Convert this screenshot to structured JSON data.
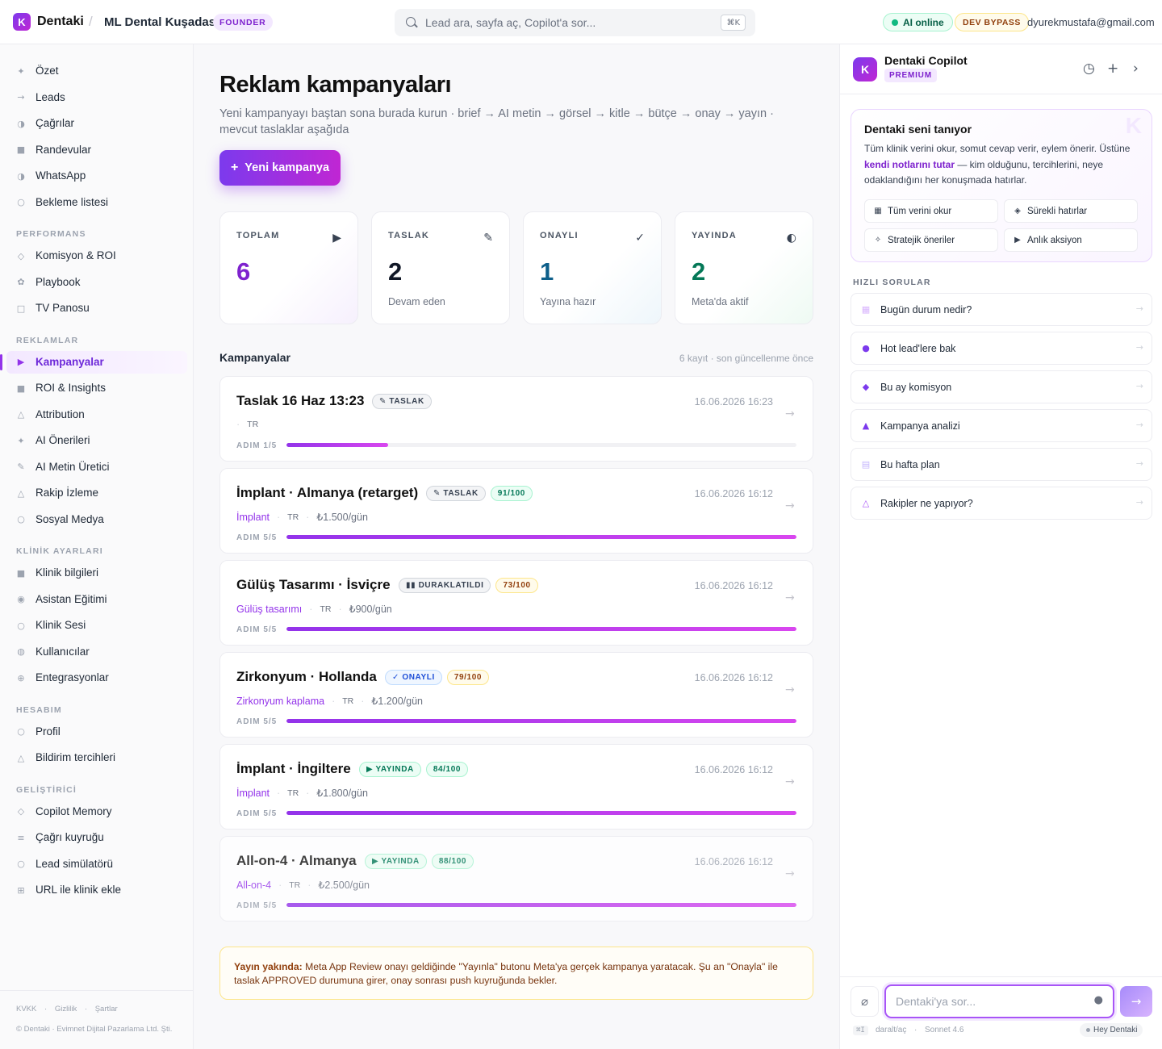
{
  "topbar": {
    "logo_letter": "K",
    "brand": "Dentaki",
    "separator": "/",
    "clinic": "ML Dental Kuşadası",
    "role_badge": "FOUNDER",
    "search_placeholder": "Lead ara, sayfa aç, Copilot'a sor...",
    "search_shortcut": "⌘K",
    "ai_status": "AI online",
    "dev_badge": "DEV BYPASS",
    "user_email": "dyurekmustafa@gmail.com"
  },
  "sidebar": {
    "main_items": [
      {
        "label": "Özet",
        "icon": "sparkle-icon"
      },
      {
        "label": "Leads",
        "icon": "arrow-right-icon"
      },
      {
        "label": "Çağrılar",
        "icon": "half-circle-icon"
      },
      {
        "label": "Randevular",
        "icon": "square-icon"
      },
      {
        "label": "WhatsApp",
        "icon": "half-circle-icon"
      },
      {
        "label": "Bekleme listesi",
        "icon": "circle-icon"
      }
    ],
    "sections": [
      {
        "title": "PERFORMANS",
        "items": [
          {
            "label": "Komisyon & ROI",
            "icon": "diamond-icon"
          },
          {
            "label": "Playbook",
            "icon": "flower-icon"
          },
          {
            "label": "TV Panosu",
            "icon": "square-outline-icon"
          }
        ]
      },
      {
        "title": "REKLAMLAR",
        "items": [
          {
            "label": "Kampanyalar",
            "icon": "play-icon",
            "active": true
          },
          {
            "label": "ROI & Insights",
            "icon": "square-icon"
          },
          {
            "label": "Attribution",
            "icon": "triangle-icon"
          },
          {
            "label": "AI Önerileri",
            "icon": "sparkle-icon"
          },
          {
            "label": "AI Metin Üretici",
            "icon": "pencil-icon"
          },
          {
            "label": "Rakip İzleme",
            "icon": "triangle-icon"
          },
          {
            "label": "Sosyal Medya",
            "icon": "circle-icon"
          }
        ]
      },
      {
        "title": "KLİNİK AYARLARI",
        "items": [
          {
            "label": "Klinik bilgileri",
            "icon": "square-icon"
          },
          {
            "label": "Asistan Eğitimi",
            "icon": "target-icon"
          },
          {
            "label": "Klinik Sesi",
            "icon": "circle-icon"
          },
          {
            "label": "Kullanıcılar",
            "icon": "user-icon"
          },
          {
            "label": "Entegrasyonlar",
            "icon": "plus-circle-icon"
          }
        ]
      },
      {
        "title": "HESABIM",
        "items": [
          {
            "label": "Profil",
            "icon": "circle-icon"
          },
          {
            "label": "Bildirim tercihleri",
            "icon": "triangle-icon"
          }
        ]
      },
      {
        "title": "GELİŞTİRİCİ",
        "items": [
          {
            "label": "Copilot Memory",
            "icon": "diamond-icon"
          },
          {
            "label": "Çağrı kuyruğu",
            "icon": "list-icon"
          },
          {
            "label": "Lead simülatörü",
            "icon": "circle-icon"
          },
          {
            "label": "URL ile klinik ekle",
            "icon": "grid-icon"
          }
        ]
      }
    ],
    "footer_links": [
      "KVKK",
      "Gizlilik",
      "Şartlar"
    ],
    "copyright": "© Dentaki · Evimnet Dijital Pazarlama Ltd. Şti."
  },
  "main": {
    "title": "Reklam kampanyaları",
    "subtitle": "Yeni kampanyayı baştan sona burada kurun · brief → AI metin → görsel → kitle → bütçe → onay → yayın · mevcut taslaklar aşağıda",
    "new_button": "Yeni kampanya",
    "stats": [
      {
        "label": "TOPLAM",
        "value": "6",
        "sub": "",
        "icon": "▶",
        "color": "#7e22ce"
      },
      {
        "label": "TASLAK",
        "value": "2",
        "sub": "Devam eden",
        "icon": "✎",
        "color": "#111827"
      },
      {
        "label": "ONAYLI",
        "value": "1",
        "sub": "Yayına hazır",
        "icon": "✓",
        "color": "#0e5f8a"
      },
      {
        "label": "YAYINDA",
        "value": "2",
        "sub": "Meta'da aktif",
        "icon": "◐",
        "color": "#047857"
      }
    ],
    "list_title": "Kampanyalar",
    "list_meta": "6 kayıt · son güncellenme önce",
    "campaigns": [
      {
        "title": "Taslak 16 Haz 13:23",
        "status": "✎ TASLAK",
        "status_type": "taslak",
        "score": "",
        "score_type": "",
        "category": "",
        "lang": "TR",
        "budget": "",
        "date": "16.06.2026 16:23",
        "step": "ADIM 1/5",
        "progress": 0.2
      },
      {
        "title": "İmplant · Almanya (retarget)",
        "status": "✎ TASLAK",
        "status_type": "taslak",
        "score": "91/100",
        "score_type": "g",
        "category": "İmplant",
        "lang": "TR",
        "budget": "₺1.500/gün",
        "date": "16.06.2026 16:12",
        "step": "ADIM 5/5",
        "progress": 1
      },
      {
        "title": "Gülüş Tasarımı · İsviçre",
        "status": "▮▮ DURAKLATILDI",
        "status_type": "dur",
        "score": "73/100",
        "score_type": "y",
        "category": "Gülüş tasarımı",
        "lang": "TR",
        "budget": "₺900/gün",
        "date": "16.06.2026 16:12",
        "step": "ADIM 5/5",
        "progress": 1
      },
      {
        "title": "Zirkonyum · Hollanda",
        "status": "✓ ONAYLI",
        "status_type": "onay",
        "score": "79/100",
        "score_type": "y",
        "category": "Zirkonyum kaplama",
        "lang": "TR",
        "budget": "₺1.200/gün",
        "date": "16.06.2026 16:12",
        "step": "ADIM 5/5",
        "progress": 1
      },
      {
        "title": "İmplant · İngiltere",
        "status": "▶ YAYINDA",
        "status_type": "yay",
        "score": "84/100",
        "score_type": "g",
        "category": "İmplant",
        "lang": "TR",
        "budget": "₺1.800/gün",
        "date": "16.06.2026 16:12",
        "step": "ADIM 5/5",
        "progress": 1
      },
      {
        "title": "All-on-4 · Almanya",
        "status": "▶ YAYINDA",
        "status_type": "yay",
        "score": "88/100",
        "score_type": "g",
        "category": "All-on-4",
        "lang": "TR",
        "budget": "₺2.500/gün",
        "date": "16.06.2026 16:12",
        "step": "ADIM 5/5",
        "progress": 1
      }
    ],
    "notice_bold": "Yayın yakında:",
    "notice_text": " Meta App Review onayı geldiğinde \"Yayınla\" butonu Meta'ya gerçek kampanya yaratacak. Şu an \"Onayla\" ile taslak APPROVED durumuna girer, onay sonrası push kuyruğunda bekler."
  },
  "copilot": {
    "logo_letter": "K",
    "title": "Dentaki Copilot",
    "plan": "PREMIUM",
    "intro_title": "Dentaki seni tanıyor",
    "intro_p1": "Tüm klinik verini okur, somut cevap verir, eylem önerir. Üstüne ",
    "intro_bold": "kendi notlarını tutar",
    "intro_p2": " — kim olduğunu, tercihlerini, neye odaklandığını her konuşmada hatırlar.",
    "capabilities": [
      {
        "label": "Tüm verini okur",
        "icon": "▦"
      },
      {
        "label": "Sürekli hatırlar",
        "icon": "◈"
      },
      {
        "label": "Stratejik öneriler",
        "icon": "✧"
      },
      {
        "label": "Anlık aksiyon",
        "icon": "▶"
      }
    ],
    "quick_title": "HIZLI SORULAR",
    "quick_questions": [
      {
        "label": "Bugün durum nedir?",
        "icon": "▦",
        "color": "#d8b4fe"
      },
      {
        "label": "Hot lead'lere bak",
        "icon": "●",
        "color": "#7c3aed"
      },
      {
        "label": "Bu ay komisyon",
        "icon": "◆",
        "color": "#7c3aed"
      },
      {
        "label": "Kampanya analizi",
        "icon": "▲",
        "color": "#7c3aed"
      },
      {
        "label": "Bu hafta plan",
        "icon": "▤",
        "color": "#c4b5fd"
      },
      {
        "label": "Rakipler ne yapıyor?",
        "icon": "△",
        "color": "#a855f7"
      }
    ],
    "input_placeholder": "Dentaki'ya sor...",
    "hint_kbd": "⌘I",
    "hint_toggle": "daralt/aç",
    "hint_model": "Sonnet 4.6",
    "wake_word": "Hey Dentaki"
  }
}
